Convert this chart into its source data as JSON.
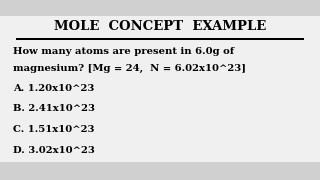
{
  "title": "MOLE  CONCEPT  EXAMPLE",
  "question_line1": "How many atoms are present in 6.0g of",
  "question_line2": "magnesium? [Mg = 24,  N = 6.02x10^23]",
  "options": [
    "A. 1.20x10^23",
    "B. 2.41x10^23",
    "C. 1.51x10^23",
    "D. 3.02x10^23"
  ],
  "bg_color": "#f0f0f0",
  "toolbar_color": "#d0d0d0",
  "text_color": "#000000",
  "title_fontsize": 9.5,
  "question_fontsize": 7.2,
  "option_fontsize": 7.2
}
